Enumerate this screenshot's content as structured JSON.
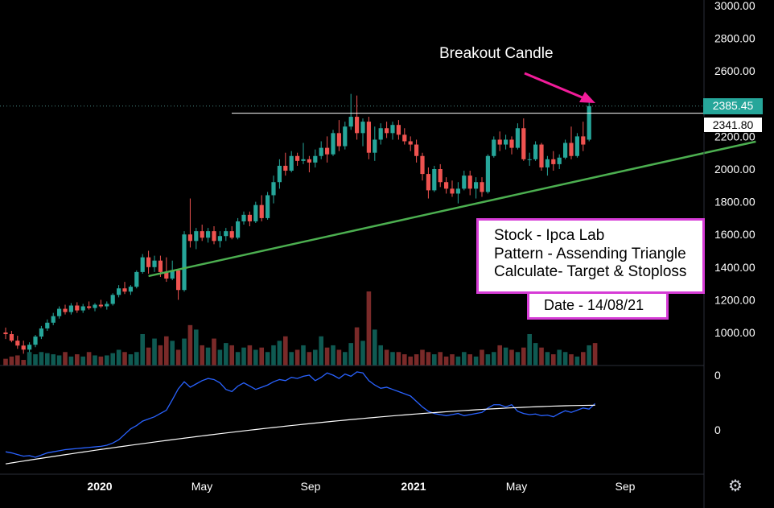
{
  "chart_data": {
    "type": "candlestick",
    "price_axis": {
      "ticks": [
        3000,
        2800,
        2600,
        2400,
        2200,
        2000,
        1800,
        1600,
        1400,
        1200,
        1000
      ],
      "tick_labels": [
        "3000.00",
        "2800.00",
        "2600.00",
        "2400.00",
        "2200.00",
        "2000.00",
        "1800.00",
        "1600.00",
        "1400.00",
        "1200.00",
        "1000.00"
      ],
      "ylim": [
        790,
        3020
      ]
    },
    "indicator_axis": {
      "tick_labels": [
        "0",
        "0"
      ]
    },
    "time_axis": {
      "tick_labels": [
        "2020",
        "May",
        "Sep",
        "2021",
        "May",
        "Sep"
      ],
      "bold": [
        true,
        false,
        false,
        true,
        false,
        false
      ]
    },
    "current_price": {
      "label": "2385.45",
      "value": 2385.45,
      "color": "#26a69a"
    },
    "resistance": {
      "label": "2341.80",
      "value": 2341.8,
      "color": "#ffffff"
    },
    "support_line": {
      "from": {
        "bar": 24,
        "price": 1345
      },
      "to": {
        "bar": 126,
        "price": 2168
      },
      "color": "#4caf50"
    },
    "candles": [
      [
        1000,
        1030,
        960,
        990
      ],
      [
        990,
        1010,
        940,
        950
      ],
      [
        950,
        980,
        900,
        920
      ],
      [
        920,
        950,
        870,
        895
      ],
      [
        895,
        940,
        880,
        925
      ],
      [
        925,
        985,
        910,
        975
      ],
      [
        975,
        1040,
        960,
        1025
      ],
      [
        1025,
        1080,
        1010,
        1060
      ],
      [
        1060,
        1120,
        1045,
        1100
      ],
      [
        1100,
        1160,
        1085,
        1145
      ],
      [
        1145,
        1170,
        1110,
        1125
      ],
      [
        1125,
        1180,
        1110,
        1165
      ],
      [
        1165,
        1185,
        1120,
        1135
      ],
      [
        1135,
        1175,
        1120,
        1160
      ],
      [
        1160,
        1190,
        1140,
        1150
      ],
      [
        1150,
        1180,
        1130,
        1170
      ],
      [
        1170,
        1200,
        1150,
        1160
      ],
      [
        1160,
        1190,
        1140,
        1175
      ],
      [
        1175,
        1240,
        1165,
        1230
      ],
      [
        1230,
        1290,
        1215,
        1270
      ],
      [
        1270,
        1310,
        1235,
        1250
      ],
      [
        1250,
        1290,
        1230,
        1280
      ],
      [
        1280,
        1380,
        1270,
        1370
      ],
      [
        1370,
        1480,
        1360,
        1460
      ],
      [
        1460,
        1500,
        1360,
        1400
      ],
      [
        1400,
        1470,
        1370,
        1440
      ],
      [
        1440,
        1470,
        1340,
        1370
      ],
      [
        1370,
        1460,
        1310,
        1330
      ],
      [
        1330,
        1440,
        1320,
        1380
      ],
      [
        1380,
        1390,
        1200,
        1260
      ],
      [
        1260,
        1620,
        1250,
        1600
      ],
      [
        1600,
        1820,
        1520,
        1560
      ],
      [
        1560,
        1640,
        1510,
        1620
      ],
      [
        1620,
        1660,
        1560,
        1580
      ],
      [
        1580,
        1640,
        1550,
        1620
      ],
      [
        1620,
        1650,
        1540,
        1560
      ],
      [
        1560,
        1620,
        1520,
        1590
      ],
      [
        1590,
        1640,
        1560,
        1620
      ],
      [
        1620,
        1650,
        1570,
        1580
      ],
      [
        1580,
        1700,
        1570,
        1680
      ],
      [
        1680,
        1740,
        1660,
        1720
      ],
      [
        1720,
        1740,
        1650,
        1680
      ],
      [
        1680,
        1800,
        1670,
        1780
      ],
      [
        1780,
        1840,
        1680,
        1700
      ],
      [
        1700,
        1860,
        1690,
        1840
      ],
      [
        1840,
        1960,
        1790,
        1920
      ],
      [
        1920,
        2060,
        1880,
        2020
      ],
      [
        2020,
        2100,
        1960,
        1990
      ],
      [
        1990,
        2110,
        1980,
        2080
      ],
      [
        2080,
        2100,
        2020,
        2050
      ],
      [
        2050,
        2160,
        2030,
        2060
      ],
      [
        2060,
        2080,
        1980,
        2040
      ],
      [
        2040,
        2120,
        2010,
        2080
      ],
      [
        2080,
        2170,
        2060,
        2130
      ],
      [
        2130,
        2200,
        2040,
        2090
      ],
      [
        2090,
        2240,
        2080,
        2220
      ],
      [
        2220,
        2300,
        2110,
        2140
      ],
      [
        2140,
        2290,
        2120,
        2260
      ],
      [
        2260,
        2460,
        2240,
        2320
      ],
      [
        2320,
        2450,
        2180,
        2220
      ],
      [
        2220,
        2310,
        2140,
        2290
      ],
      [
        2290,
        2320,
        2060,
        2100
      ],
      [
        2100,
        2260,
        2050,
        2180
      ],
      [
        2180,
        2280,
        2150,
        2250
      ],
      [
        2250,
        2290,
        2190,
        2220
      ],
      [
        2220,
        2290,
        2180,
        2270
      ],
      [
        2270,
        2300,
        2180,
        2210
      ],
      [
        2210,
        2250,
        2150,
        2170
      ],
      [
        2170,
        2200,
        2110,
        2150
      ],
      [
        2150,
        2180,
        2040,
        2080
      ],
      [
        2080,
        2100,
        1930,
        1970
      ],
      [
        1970,
        2010,
        1820,
        1870
      ],
      [
        1870,
        2020,
        1860,
        2000
      ],
      [
        2000,
        2030,
        1890,
        1920
      ],
      [
        1920,
        1950,
        1850,
        1880
      ],
      [
        1880,
        1930,
        1830,
        1850
      ],
      [
        1850,
        1920,
        1790,
        1880
      ],
      [
        1880,
        1990,
        1870,
        1960
      ],
      [
        1960,
        1990,
        1840,
        1880
      ],
      [
        1880,
        1950,
        1820,
        1920
      ],
      [
        1920,
        1950,
        1830,
        1860
      ],
      [
        1860,
        2090,
        1850,
        2080
      ],
      [
        2080,
        2200,
        2070,
        2180
      ],
      [
        2180,
        2230,
        2110,
        2150
      ],
      [
        2150,
        2210,
        2120,
        2180
      ],
      [
        2180,
        2200,
        2090,
        2130
      ],
      [
        2130,
        2280,
        2120,
        2250
      ],
      [
        2250,
        2310,
        2050,
        2060
      ],
      [
        2060,
        2100,
        2020,
        2060
      ],
      [
        2060,
        2170,
        2050,
        2150
      ],
      [
        2150,
        2160,
        1990,
        2010
      ],
      [
        2010,
        2080,
        1960,
        2060
      ],
      [
        2060,
        2110,
        1990,
        2030
      ],
      [
        2030,
        2090,
        2000,
        2070
      ],
      [
        2070,
        2180,
        2060,
        2160
      ],
      [
        2160,
        2260,
        2060,
        2080
      ],
      [
        2080,
        2220,
        2070,
        2200
      ],
      [
        2200,
        2290,
        2110,
        2150
      ],
      [
        2180,
        2440,
        2170,
        2385.45
      ]
    ],
    "volumes": [
      30,
      40,
      45,
      25,
      60,
      50,
      60,
      55,
      50,
      45,
      60,
      40,
      50,
      40,
      60,
      45,
      40,
      45,
      55,
      70,
      60,
      50,
      60,
      140,
      80,
      120,
      90,
      130,
      110,
      70,
      120,
      180,
      160,
      90,
      80,
      120,
      70,
      100,
      90,
      60,
      80,
      90,
      70,
      80,
      60,
      90,
      110,
      130,
      60,
      70,
      90,
      60,
      70,
      130,
      80,
      90,
      70,
      60,
      100,
      170,
      110,
      330,
      160,
      90,
      70,
      60,
      60,
      50,
      40,
      50,
      70,
      60,
      50,
      60,
      40,
      50,
      40,
      60,
      50,
      40,
      70,
      50,
      60,
      90,
      80,
      70,
      60,
      80,
      140,
      100,
      80,
      60,
      50,
      70,
      60,
      50,
      40,
      60,
      90,
      100
    ],
    "volume_colors": [
      "up",
      "down"
    ],
    "indicator": {
      "line": [
        -0.4,
        -0.42,
        -0.45,
        -0.48,
        -0.47,
        -0.5,
        -0.46,
        -0.42,
        -0.4,
        -0.38,
        -0.36,
        -0.35,
        -0.34,
        -0.33,
        -0.32,
        -0.31,
        -0.3,
        -0.28,
        -0.24,
        -0.18,
        -0.08,
        0.02,
        0.08,
        0.16,
        0.2,
        0.24,
        0.3,
        0.36,
        0.55,
        0.75,
        0.88,
        0.78,
        0.84,
        0.9,
        0.94,
        0.92,
        0.86,
        0.74,
        0.7,
        0.8,
        0.86,
        0.8,
        0.74,
        0.78,
        0.82,
        0.88,
        0.92,
        0.9,
        0.96,
        0.94,
        0.98,
        1.0,
        0.9,
        0.96,
        1.04,
        1.0,
        0.94,
        1.02,
        0.98,
        1.06,
        1.04,
        0.9,
        0.82,
        0.76,
        0.78,
        0.74,
        0.7,
        0.66,
        0.62,
        0.52,
        0.42,
        0.34,
        0.3,
        0.28,
        0.26,
        0.28,
        0.3,
        0.26,
        0.28,
        0.3,
        0.32,
        0.4,
        0.46,
        0.46,
        0.42,
        0.46,
        0.34,
        0.3,
        0.28,
        0.29,
        0.26,
        0.27,
        0.24,
        0.3,
        0.35,
        0.32,
        0.36,
        0.4,
        0.38,
        0.48
      ],
      "signal_start": -0.62,
      "signal_end": 0.45,
      "ylim": [
        -0.8,
        1.25
      ]
    },
    "colors": {
      "up": "#26a69a",
      "down": "#ef5350",
      "volume_up": "#0f5a52",
      "volume_down": "#7a2a29",
      "indicator": "#2962ff",
      "signal": "#ffffff",
      "axis_text": "#ffffff"
    }
  },
  "annotations": {
    "callout": "Breakout Candle",
    "info_lines": [
      "Stock - Ipca Lab",
      "Pattern - Assending Triangle",
      "Calculate- Target & Stoploss"
    ],
    "date": "Date - 14/08/21",
    "accent": "#d63cd6",
    "arrow": "#f21c9a"
  }
}
